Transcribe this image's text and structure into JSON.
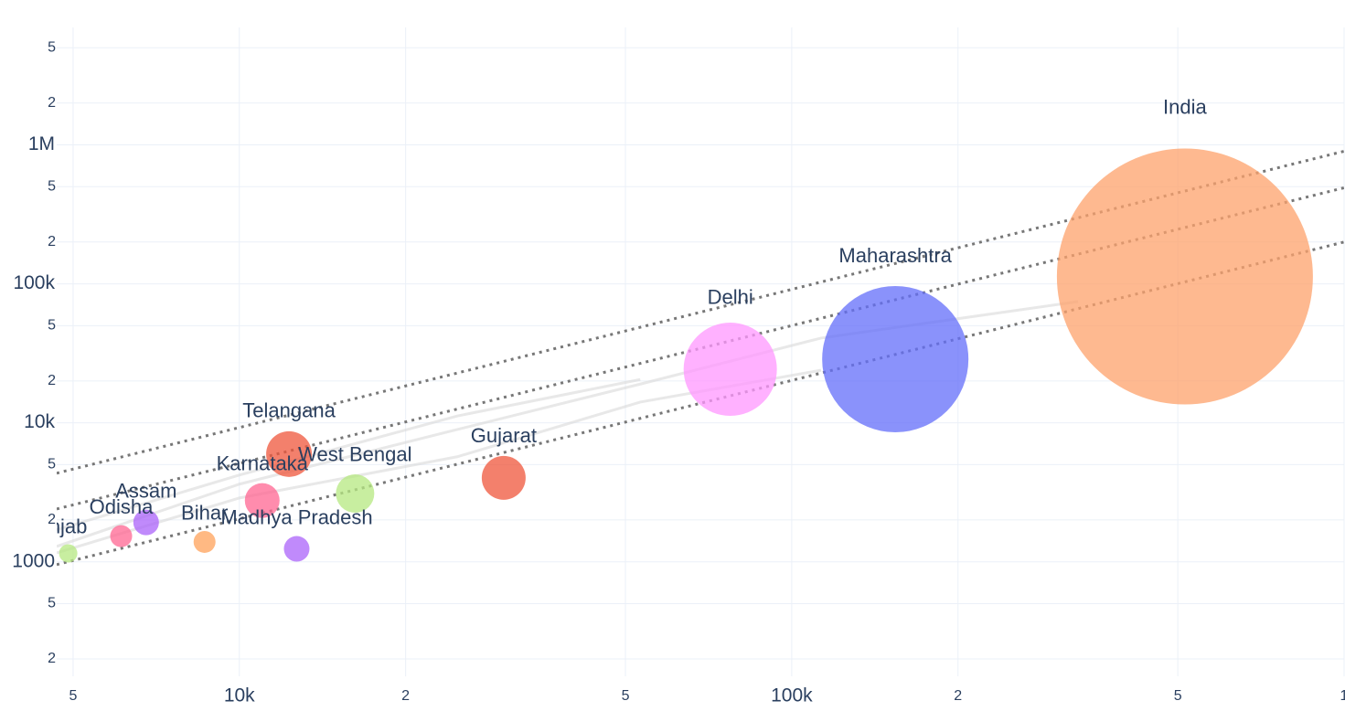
{
  "chart_data": {
    "type": "bubble",
    "xlog": true,
    "ylog": true,
    "grid": true,
    "xlim": [
      4670,
      1000000
    ],
    "ylim": [
      150,
      7000000
    ],
    "xticks": [
      {
        "value": 5000,
        "label": "5"
      },
      {
        "value": 10000,
        "label": "10k"
      },
      {
        "value": 20000,
        "label": "2"
      },
      {
        "value": 50000,
        "label": "5"
      },
      {
        "value": 100000,
        "label": "100k"
      },
      {
        "value": 200000,
        "label": "2"
      },
      {
        "value": 500000,
        "label": "5"
      },
      {
        "value": 1000000,
        "label": "1"
      }
    ],
    "yticks": [
      {
        "value": 200,
        "label": "2"
      },
      {
        "value": 500,
        "label": "5"
      },
      1000,
      {
        "value": 2000,
        "label": "2"
      },
      {
        "value": 5000,
        "label": "5"
      },
      {
        "value": 10000,
        "label": "10k"
      },
      {
        "value": 20000,
        "label": "2"
      },
      {
        "value": 50000,
        "label": "5"
      },
      {
        "value": 100000,
        "label": "100k"
      },
      {
        "value": 200000,
        "label": "2"
      },
      {
        "value": 500000,
        "label": "5"
      },
      {
        "value": 1000000,
        "label": "1M"
      },
      {
        "value": 2000000,
        "label": "2"
      },
      {
        "value": 5000000,
        "label": "5"
      }
    ],
    "series": [
      {
        "name": "India",
        "color": "#fea16b",
        "x": [
          515000
        ],
        "values": [
          113000
        ],
        "size": [
          19600
        ]
      },
      {
        "name": "Maharashtra",
        "color": "#636efa",
        "x": [
          154000
        ],
        "values": [
          28700
        ],
        "size": [
          6400
        ]
      },
      {
        "name": "Delhi",
        "color": "#ff97ff",
        "x": [
          77400
        ],
        "values": [
          24300
        ],
        "size": [
          2600
        ]
      },
      {
        "name": "Gujarat",
        "color": "#ef553b",
        "x": [
          30100
        ],
        "values": [
          4020
        ],
        "size": [
          576
        ]
      },
      {
        "name": "Telangana",
        "color": "#ef553b",
        "x": [
          12300
        ],
        "values": [
          5960
        ],
        "size": [
          625
        ]
      },
      {
        "name": "West Bengal",
        "color": "#b6e880",
        "x": [
          16200
        ],
        "values": [
          3100
        ],
        "size": [
          441
        ]
      },
      {
        "name": "Karnataka",
        "color": "#ff6692",
        "x": [
          11000
        ],
        "values": [
          2760
        ],
        "size": [
          361
        ]
      },
      {
        "name": "Madhya Pradesh",
        "color": "#ab63fa",
        "x": [
          12700
        ],
        "values": [
          1240
        ],
        "size": [
          196
        ]
      },
      {
        "name": "Bihar",
        "color": "#ffa15a",
        "x": [
          8650
        ],
        "values": [
          1390
        ],
        "size": [
          144
        ]
      },
      {
        "name": "Assam",
        "color": "#ab63fa",
        "x": [
          6780
        ],
        "values": [
          1920
        ],
        "size": [
          196
        ]
      },
      {
        "name": "Odisha",
        "color": "#ff6692",
        "x": [
          6110
        ],
        "values": [
          1530
        ],
        "size": [
          144
        ]
      },
      {
        "name": "njab",
        "color": "#b6e880",
        "x": [
          4900
        ],
        "values": [
          1150
        ],
        "size": [
          100
        ]
      }
    ],
    "trails": [
      {
        "x": [
          4670,
          10000,
          24800,
          53200,
          113000,
          330000
        ],
        "values": [
          1290,
          3620,
          8950,
          19000,
          40700,
          74500
        ]
      },
      {
        "x": [
          4670,
          10000,
          24800,
          53200,
          113000
        ],
        "values": [
          1160,
          2880,
          5700,
          14100,
          23900
        ]
      },
      {
        "x": [
          4670,
          10000,
          24800,
          53200
        ],
        "values": [
          1700,
          4210,
          11200,
          20500
        ]
      }
    ],
    "reference_lines": [
      {
        "x": [
          4670,
          1000000
        ],
        "values": [
          4340,
          900000
        ]
      },
      {
        "x": [
          4670,
          1000000
        ],
        "values": [
          2400,
          491000
        ]
      },
      {
        "x": [
          4670,
          1000000
        ],
        "values": [
          955,
          200000
        ]
      }
    ]
  }
}
